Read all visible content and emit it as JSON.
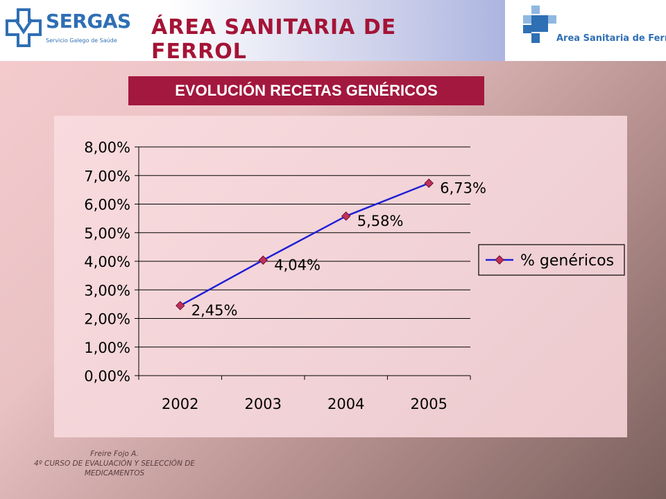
{
  "header": {
    "logo_left": {
      "name": "SERGAS",
      "subtitle": "Servicio Galego de Saúde"
    },
    "title": "ÁREA SANITARIA DE FERROL",
    "logo_right": {
      "text": "Area Sanitaria de Ferrol"
    }
  },
  "subtitle": "EVOLUCIÓN RECETAS GENÉRICOS",
  "footer": {
    "line1": "Freire Fojo A.",
    "line2": "4º CURSO DE EVALUACIÓN Y SELECCIÓN DE",
    "line3": "MEDICAMENTOS"
  },
  "colors": {
    "title": "#a41436",
    "subtitle_bg": "#a3183f",
    "line": "#1f1fd6",
    "marker": "#c0305a",
    "logo_blue": "#2f6fb4"
  },
  "chart_data": {
    "type": "line",
    "categories": [
      "2002",
      "2003",
      "2004",
      "2005"
    ],
    "series": [
      {
        "name": "% genéricos",
        "values": [
          2.45,
          4.04,
          5.58,
          6.73
        ],
        "labels": [
          "2,45%",
          "4,04%",
          "5,58%",
          "6,73%"
        ]
      }
    ],
    "ylim": [
      0,
      8
    ],
    "yticks": [
      0,
      1,
      2,
      3,
      4,
      5,
      6,
      7,
      8
    ],
    "ytick_labels": [
      "0,00%",
      "1,00%",
      "2,00%",
      "3,00%",
      "4,00%",
      "5,00%",
      "6,00%",
      "7,00%",
      "8,00%"
    ],
    "grid": true,
    "legend": "right"
  }
}
